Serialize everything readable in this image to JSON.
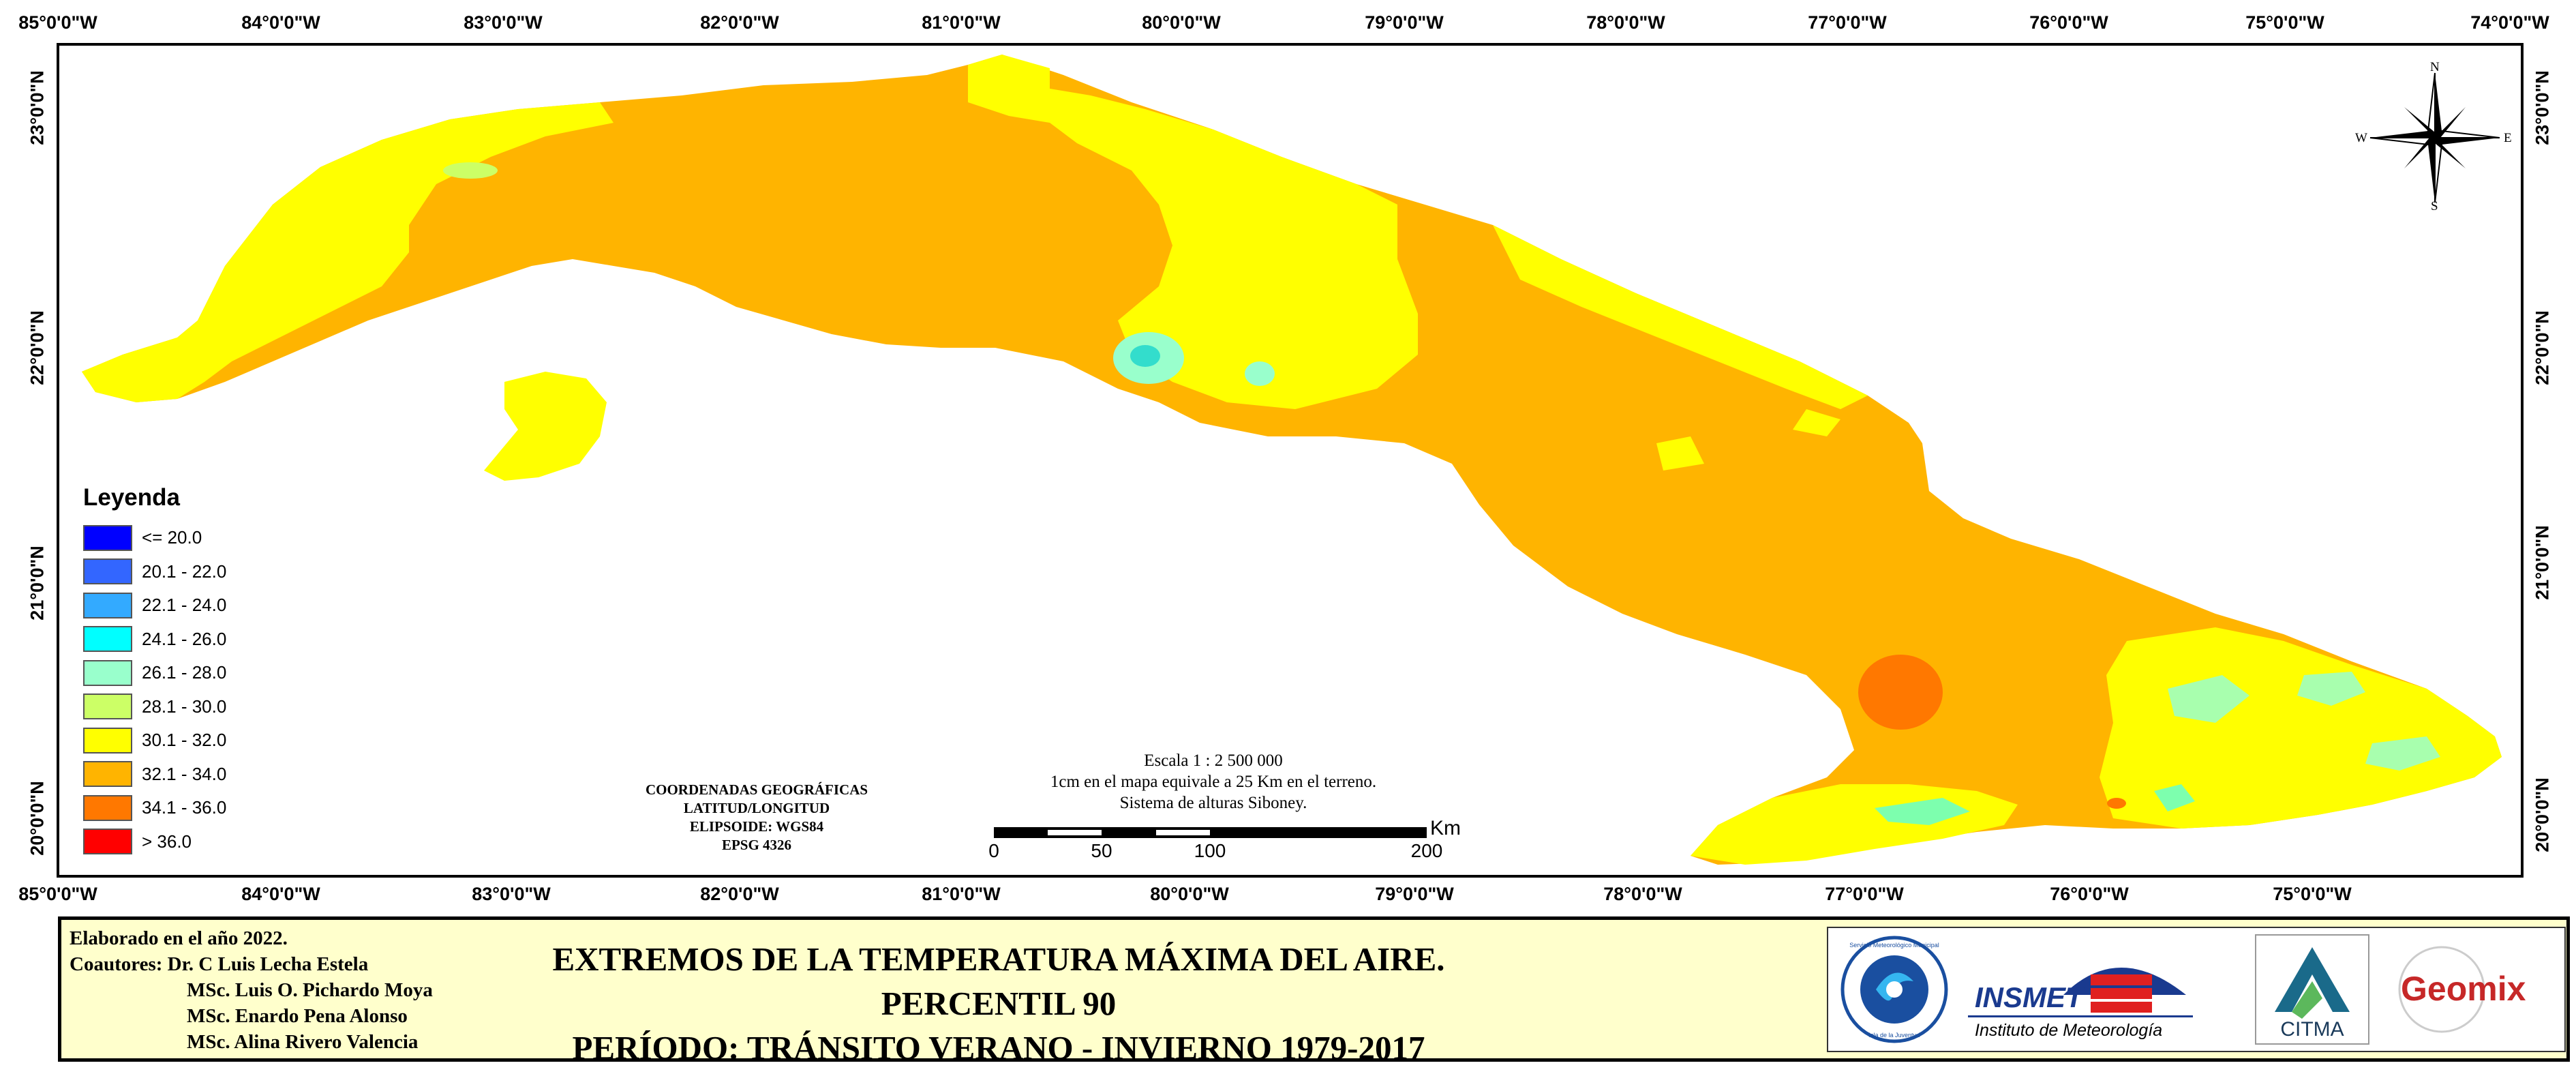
{
  "map": {
    "longitude_labels": [
      "85°0'0\"W",
      "84°0'0\"W",
      "83°0'0\"W",
      "82°0'0\"W",
      "81°0'0\"W",
      "80°0'0\"W",
      "79°0'0\"W",
      "78°0'0\"W",
      "77°0'0\"W",
      "76°0'0\"W",
      "75°0'0\"W",
      "74°0'0\"W"
    ],
    "latitude_labels": [
      "23°0'0\"N",
      "22°0'0\"N",
      "21°0'0\"N",
      "20°0'0\"N"
    ],
    "compass": {
      "n": "N",
      "s": "S",
      "e": "E",
      "w": "W"
    }
  },
  "legend": {
    "title": "Leyenda",
    "items": [
      {
        "label": "<= 20.0",
        "color": "#0000ff"
      },
      {
        "label": "20.1 - 22.0",
        "color": "#3366ff"
      },
      {
        "label": "22.1 - 24.0",
        "color": "#33aaff"
      },
      {
        "label": "24.1 - 26.0",
        "color": "#00ffff"
      },
      {
        "label": "26.1 - 28.0",
        "color": "#99ffcc"
      },
      {
        "label": "28.1 - 30.0",
        "color": "#ccff66"
      },
      {
        "label": "30.1 - 32.0",
        "color": "#ffff00"
      },
      {
        "label": "32.1 - 34.0",
        "color": "#ffb400"
      },
      {
        "label": "34.1 - 36.0",
        "color": "#ff7800"
      },
      {
        "label": "> 36.0",
        "color": "#ff0000"
      }
    ]
  },
  "coordinates_info": [
    "COORDENADAS GEOGRÁFICAS",
    "LATITUD/LONGITUD",
    "ELIPSOIDE: WGS84",
    "EPSG 4326"
  ],
  "scale": {
    "lines": [
      "Escala 1 : 2 500 000",
      "1cm en el mapa equivale a 25 Km en el terreno.",
      "Sistema de alturas Siboney."
    ],
    "ticks": [
      "0",
      "50",
      "100",
      "200"
    ],
    "unit": "Km"
  },
  "footer": {
    "elaborated": "Elaborado en el año 2022.",
    "coauthors_label": "Coautores:",
    "authors": [
      "Dr. C Luis Lecha Estela",
      "MSc. Luis O. Pichardo Moya",
      "MSc. Enardo Pena Alonso",
      "MSc. Alina Rivero Valencia"
    ],
    "title_line1": "EXTREMOS DE LA TEMPERATURA MÁXIMA DEL AIRE. PERCENTIL 90",
    "title_line2": "PERÍODO: TRÁNSITO VERANO - INVIERNO 1979-2017"
  },
  "logos": {
    "smm_text_top": "Servicio Meteorológico Municipal",
    "smm_text_bottom": "Isla de la Juventud",
    "insmet_name": "INSMET",
    "insmet_sub": "Instituto de Meteorología",
    "citma": "CITMA",
    "geomix": "Geomix"
  }
}
